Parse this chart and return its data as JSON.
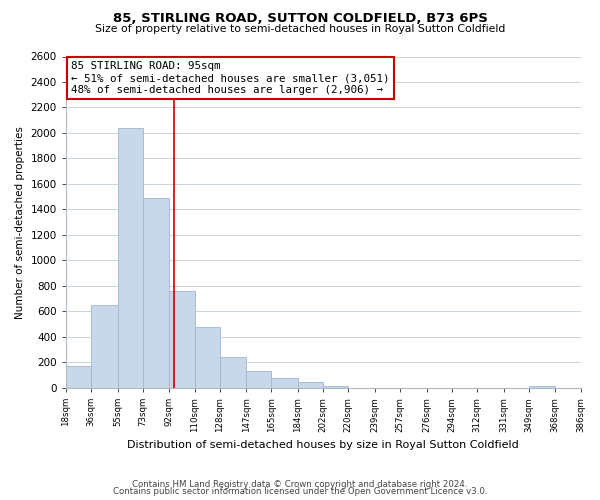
{
  "title": "85, STIRLING ROAD, SUTTON COLDFIELD, B73 6PS",
  "subtitle": "Size of property relative to semi-detached houses in Royal Sutton Coldfield",
  "xlabel": "Distribution of semi-detached houses by size in Royal Sutton Coldfield",
  "ylabel": "Number of semi-detached properties",
  "footer_line1": "Contains HM Land Registry data © Crown copyright and database right 2024.",
  "footer_line2": "Contains public sector information licensed under the Open Government Licence v3.0.",
  "bar_edges": [
    18,
    36,
    55,
    73,
    92,
    110,
    128,
    147,
    165,
    184,
    202,
    220,
    239,
    257,
    276,
    294,
    312,
    331,
    349,
    368,
    386
  ],
  "bar_heights": [
    170,
    650,
    2040,
    1490,
    760,
    480,
    245,
    130,
    75,
    45,
    10,
    0,
    0,
    0,
    0,
    0,
    0,
    0,
    10,
    0
  ],
  "bar_color": "#c8d8ea",
  "bar_edge_color": "#a0b8cc",
  "property_line_x": 95,
  "property_line_color": "#cc0000",
  "annotation_title": "85 STIRLING ROAD: 95sqm",
  "annotation_line1": "← 51% of semi-detached houses are smaller (3,051)",
  "annotation_line2": "48% of semi-detached houses are larger (2,906) →",
  "annotation_box_color": "#ffffff",
  "annotation_box_edge": "#cc0000",
  "tick_labels": [
    "18sqm",
    "36sqm",
    "55sqm",
    "73sqm",
    "92sqm",
    "110sqm",
    "128sqm",
    "147sqm",
    "165sqm",
    "184sqm",
    "202sqm",
    "220sqm",
    "239sqm",
    "257sqm",
    "276sqm",
    "294sqm",
    "312sqm",
    "331sqm",
    "349sqm",
    "368sqm",
    "386sqm"
  ],
  "ylim": [
    0,
    2600
  ],
  "yticks": [
    0,
    200,
    400,
    600,
    800,
    1000,
    1200,
    1400,
    1600,
    1800,
    2000,
    2200,
    2400,
    2600
  ],
  "background_color": "#ffffff",
  "grid_color": "#c8d4de"
}
